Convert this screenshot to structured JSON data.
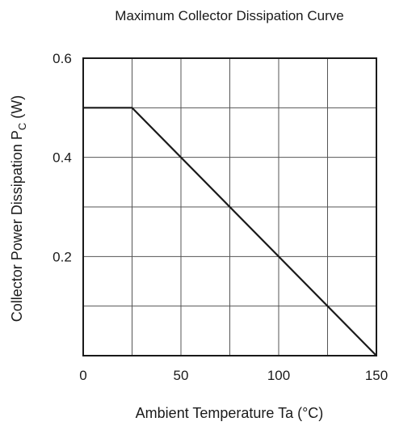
{
  "chart_data": {
    "type": "line",
    "title": "Maximum Collector Dissipation Curve",
    "xlabel": "Ambient Temperature  Ta  (°C)",
    "ylabel": {
      "main": "Collector Power Dissipation  P",
      "subscript": "C",
      "unit": "  (W)"
    },
    "xlim": [
      0,
      150
    ],
    "ylim": [
      0,
      0.6
    ],
    "x_ticks": [
      {
        "value": 0,
        "label": "0"
      },
      {
        "value": 50,
        "label": "50"
      },
      {
        "value": 100,
        "label": "100"
      },
      {
        "value": 150,
        "label": "150"
      }
    ],
    "y_ticks": [
      {
        "value": 0.6,
        "label": "0.6"
      },
      {
        "value": 0.4,
        "label": "0.4"
      },
      {
        "value": 0.2,
        "label": "0.2"
      }
    ],
    "x_grid": [
      25,
      50,
      75,
      100,
      125
    ],
    "y_grid": [
      0.1,
      0.2,
      0.3,
      0.4,
      0.5
    ],
    "grid": true,
    "series": [
      {
        "x": [
          0,
          25,
          150
        ],
        "y": [
          0.5,
          0.5,
          0
        ]
      }
    ]
  }
}
